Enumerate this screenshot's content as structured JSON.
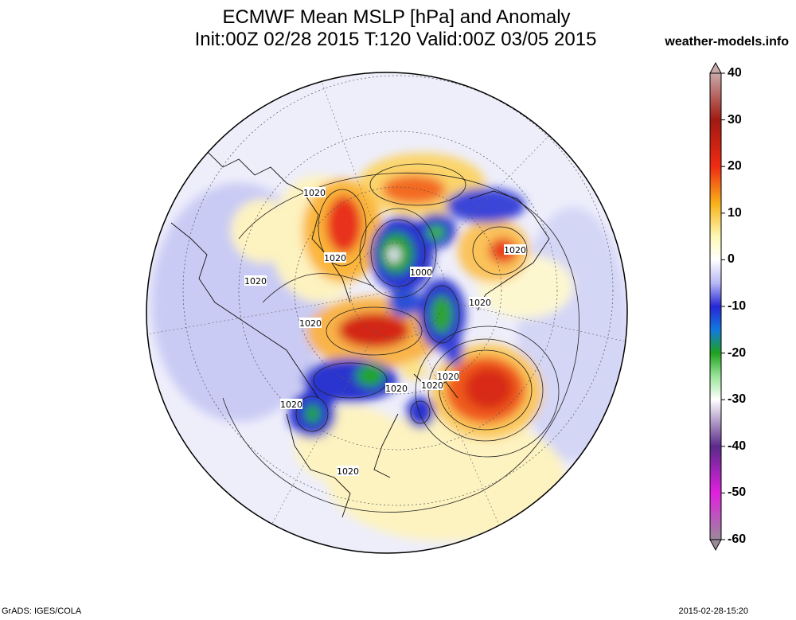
{
  "title": {
    "line1": "ECMWF Mean MSLP [hPa] and Anomaly",
    "line2": "Init:00Z 02/28 2015 T:120 Valid:00Z 03/05 2015"
  },
  "source": "weather-models.info",
  "colorbar": {
    "ticks": [
      "40",
      "30",
      "20",
      "10",
      "0",
      "-10",
      "-20",
      "-30",
      "-40",
      "-50",
      "-60"
    ],
    "stops": [
      {
        "value": 40,
        "color": "#c9a9a9"
      },
      {
        "value": 30,
        "color": "#a11a12"
      },
      {
        "value": 20,
        "color": "#ef2a12"
      },
      {
        "value": 12,
        "color": "#f7b31a"
      },
      {
        "value": 5,
        "color": "#fdf7b5"
      },
      {
        "value": 0,
        "color": "#ffffff"
      },
      {
        "value": -5,
        "color": "#b7b8f5"
      },
      {
        "value": -10,
        "color": "#2727d5"
      },
      {
        "value": -15,
        "color": "#1278e0"
      },
      {
        "value": -20,
        "color": "#1ea21e"
      },
      {
        "value": -25,
        "color": "#9ae59a"
      },
      {
        "value": -30,
        "color": "#ffffff"
      },
      {
        "value": -40,
        "color": "#5a2a8a"
      },
      {
        "value": -50,
        "color": "#e020e0"
      },
      {
        "value": -60,
        "color": "#9a8a9a"
      }
    ]
  },
  "contour_labels": [
    "1020",
    "1020",
    "1020",
    "1020",
    "1000",
    "1020",
    "1020",
    "1020",
    "1020",
    "1020",
    "1020",
    "1020"
  ],
  "footer": {
    "left": "GrADS: IGES/COLA",
    "right": "2015-02-28-15:20"
  }
}
